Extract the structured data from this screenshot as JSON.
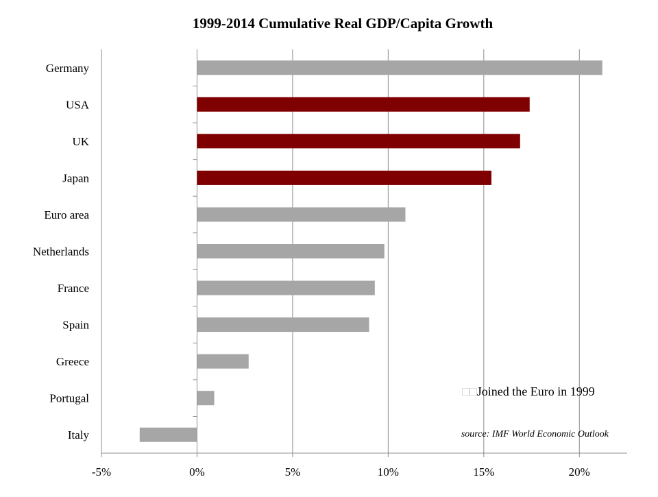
{
  "chart_data": {
    "type": "bar",
    "orientation": "horizontal",
    "title": "1999-2014 Cumulative Real GDP/Capita Growth",
    "categories": [
      "Germany",
      "USA",
      "UK",
      "Japan",
      "Euro area",
      "Netherlands",
      "France",
      "Spain",
      "Greece",
      "Portugal",
      "Italy"
    ],
    "values": [
      21.2,
      17.4,
      16.9,
      15.4,
      10.9,
      9.8,
      9.3,
      9.0,
      2.7,
      0.9,
      -3.0
    ],
    "bar_colors": [
      "#a6a6a6",
      "#7f0000",
      "#7f0000",
      "#7f0000",
      "#a6a6a6",
      "#a6a6a6",
      "#a6a6a6",
      "#a6a6a6",
      "#a6a6a6",
      "#a6a6a6",
      "#a6a6a6"
    ],
    "xlim": [
      -5,
      22.5
    ],
    "xticks": [
      -5,
      0,
      5,
      10,
      15,
      20
    ],
    "xtick_labels": [
      "-5%",
      "0%",
      "5%",
      "10%",
      "15%",
      "20%"
    ],
    "grid": "vertical",
    "legend": {
      "label": "Joined the Euro in 1999",
      "glyphs": "□□",
      "placement": "bottom-right"
    },
    "source_note": "source: IMF World Economic Outlook"
  }
}
